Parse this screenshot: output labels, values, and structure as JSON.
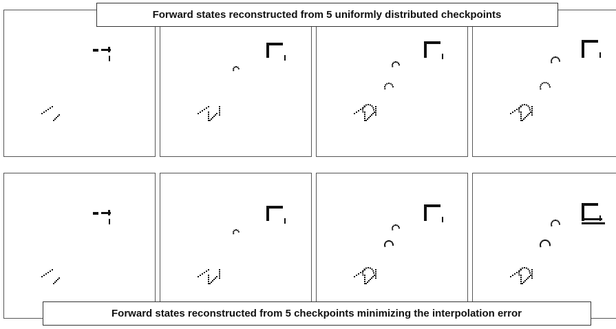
{
  "captions": {
    "top": "Forward states reconstructed from 5 uniformly distributed checkpoints",
    "bottom": "Forward states reconstructed from 5 checkpoints minimizing the interpolation error"
  }
}
